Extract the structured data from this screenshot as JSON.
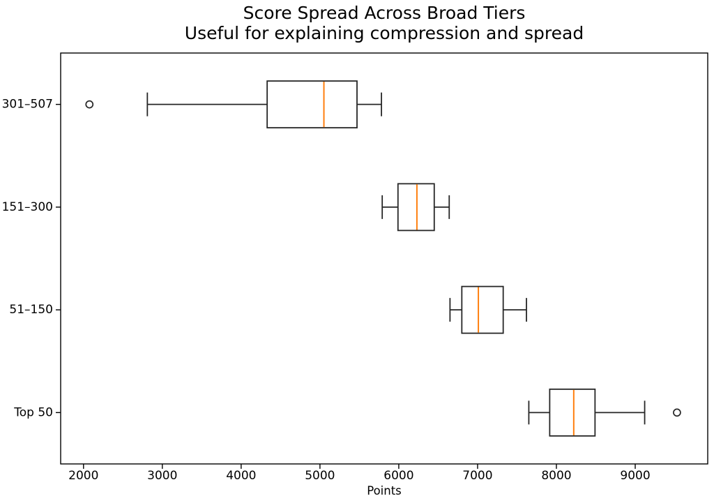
{
  "title": {
    "line1": "Score Spread Across Broad Tiers",
    "line2": "Useful for explaining compression and spread"
  },
  "chart_data": {
    "type": "boxplot",
    "orientation": "horizontal",
    "title": "Score Spread Across Broad Tiers",
    "subtitle": "Useful for explaining compression and spread",
    "xlabel": "Points",
    "ylabel": "",
    "xlim": [
      1710,
      9920
    ],
    "x_ticks": [
      2000,
      3000,
      4000,
      5000,
      6000,
      7000,
      8000,
      9000
    ],
    "grid": false,
    "legend": null,
    "categories_top_to_bottom": [
      "301–507",
      "151–300",
      "51–150",
      "Top 50"
    ],
    "series": [
      {
        "category": "301–507",
        "whisker_low": 2810,
        "q1": 4330,
        "median": 5050,
        "q3": 5470,
        "whisker_high": 5780,
        "outliers": [
          2075
        ]
      },
      {
        "category": "151–300",
        "whisker_low": 5790,
        "q1": 5990,
        "median": 6230,
        "q3": 6450,
        "whisker_high": 6640,
        "outliers": []
      },
      {
        "category": "51–150",
        "whisker_low": 6650,
        "q1": 6800,
        "median": 7010,
        "q3": 7325,
        "whisker_high": 7620,
        "outliers": []
      },
      {
        "category": "Top 50",
        "whisker_low": 7650,
        "q1": 7915,
        "median": 8220,
        "q3": 8490,
        "whisker_high": 9120,
        "outliers": [
          9530
        ]
      }
    ],
    "colors": {
      "box_line": "#262626",
      "median_line": "#ff7f0e",
      "spine": "#000000",
      "text": "#000000",
      "box_fill": "#ffffff"
    }
  }
}
